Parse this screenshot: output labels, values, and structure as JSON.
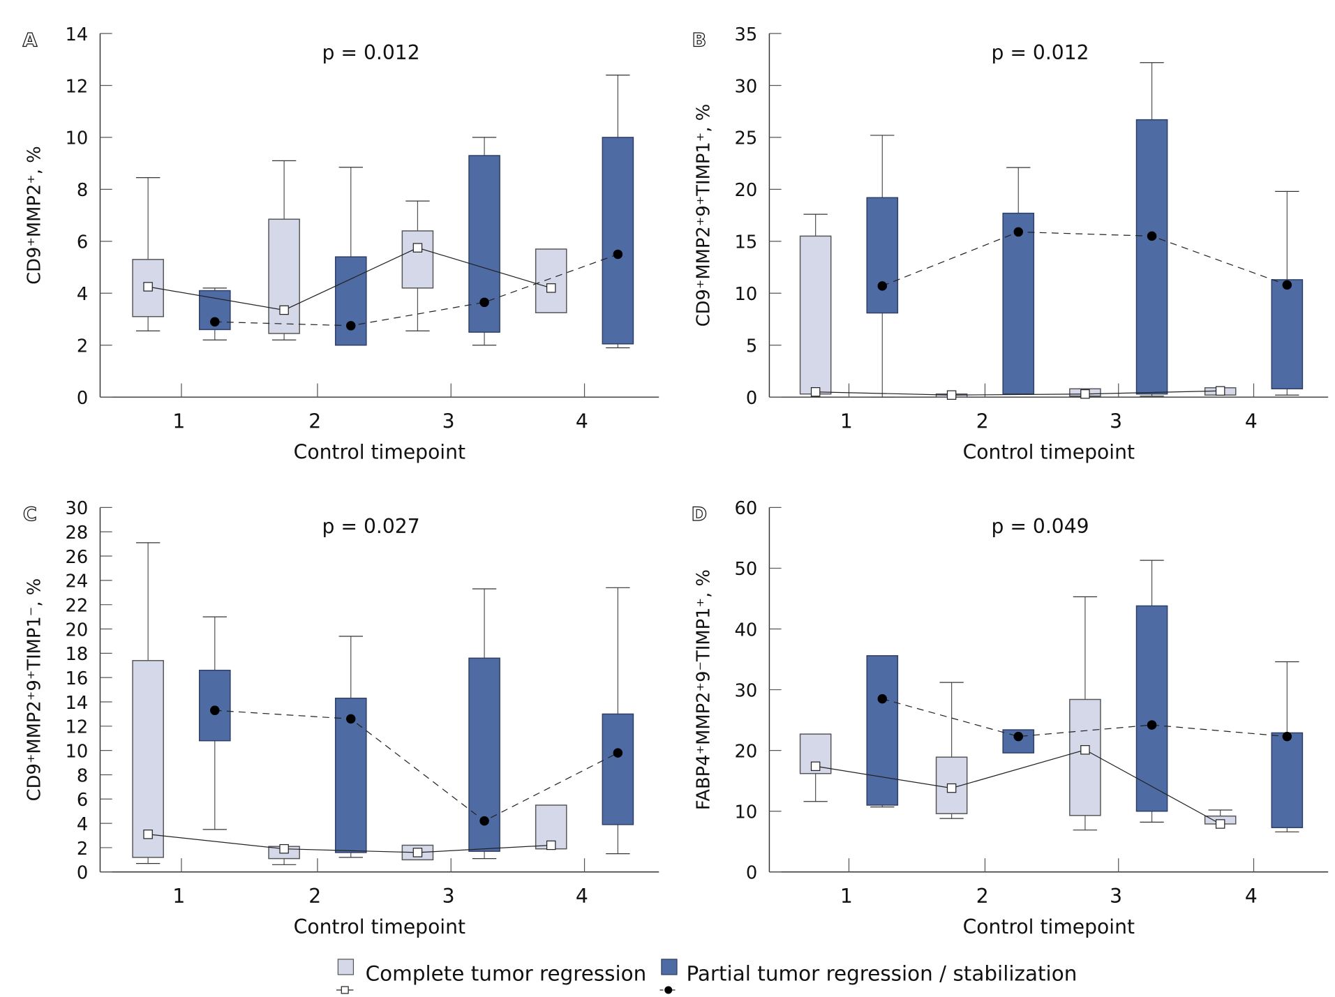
{
  "legend": {
    "complete": "Complete tumor regression",
    "partial": "Partial tumor regression / stabilization"
  },
  "colors": {
    "complete_fill": "#d4d8e8",
    "partial_fill": "#4e6ba3",
    "complete_stroke": "#555555",
    "partial_stroke": "#2e3e66"
  },
  "chart_data": [
    {
      "type": "box",
      "panel": "A",
      "p_text": "p = 0.012",
      "ylabel": "CD9⁺MMP2⁺, %",
      "xlabel": "Control timepoint",
      "ylim": [
        0,
        14
      ],
      "yticks": [
        0,
        2,
        4,
        6,
        8,
        10,
        12,
        14
      ],
      "categories": [
        "1",
        "2",
        "3",
        "4"
      ],
      "series": [
        {
          "name": "Complete tumor regression",
          "line": "solid",
          "marker": "open-square",
          "boxes": [
            {
              "whisker_high": 8.45,
              "q3": 5.3,
              "q1": 3.1,
              "whisker_low": 2.55,
              "center": 4.25
            },
            {
              "whisker_high": 9.1,
              "q3": 6.85,
              "q1": 2.45,
              "whisker_low": 2.2,
              "center": 3.35
            },
            {
              "whisker_high": 7.55,
              "q3": 6.4,
              "q1": 4.2,
              "whisker_low": 2.55,
              "center": 5.75
            },
            {
              "whisker_high": 5.7,
              "q3": 5.7,
              "q1": 3.25,
              "whisker_low": 3.25,
              "center": 4.2
            }
          ]
        },
        {
          "name": "Partial tumor regression / stabilization",
          "line": "dashed",
          "marker": "filled-circle",
          "boxes": [
            {
              "whisker_high": 4.2,
              "q3": 4.1,
              "q1": 2.6,
              "whisker_low": 2.2,
              "center": 2.9
            },
            {
              "whisker_high": 8.85,
              "q3": 5.4,
              "q1": 2.0,
              "whisker_low": 2.0,
              "center": 2.75
            },
            {
              "whisker_high": 10.0,
              "q3": 9.3,
              "q1": 2.5,
              "whisker_low": 2.0,
              "center": 3.65
            },
            {
              "whisker_high": 12.4,
              "q3": 10.0,
              "q1": 2.05,
              "whisker_low": 1.9,
              "center": 5.5
            }
          ]
        }
      ]
    },
    {
      "type": "box",
      "panel": "B",
      "p_text": "p = 0.012",
      "ylabel": "CD9⁺MMP2⁺9⁺TIMP1⁺, %",
      "xlabel": "Control timepoint",
      "ylim": [
        0,
        35
      ],
      "yticks": [
        0,
        5,
        10,
        15,
        20,
        25,
        30,
        35
      ],
      "categories": [
        "1",
        "2",
        "3",
        "4"
      ],
      "series": [
        {
          "name": "Complete tumor regression",
          "line": "solid",
          "marker": "open-square",
          "boxes": [
            {
              "whisker_high": 17.6,
              "q3": 15.5,
              "q1": 0.3,
              "whisker_low": 0.3,
              "center": 0.5
            },
            {
              "whisker_high": 0.3,
              "q3": 0.3,
              "q1": 0.0,
              "whisker_low": 0.0,
              "center": 0.2
            },
            {
              "whisker_high": 0.8,
              "q3": 0.8,
              "q1": 0.1,
              "whisker_low": 0.1,
              "center": 0.3
            },
            {
              "whisker_high": 0.9,
              "q3": 0.9,
              "q1": 0.2,
              "whisker_low": 0.2,
              "center": 0.6
            }
          ]
        },
        {
          "name": "Partial tumor regression / stabilization",
          "line": "dashed",
          "marker": "filled-circle",
          "boxes": [
            {
              "whisker_high": 25.2,
              "q3": 19.2,
              "q1": 8.1,
              "whisker_low": 0.0,
              "center": 10.7
            },
            {
              "whisker_high": 22.1,
              "q3": 17.7,
              "q1": 0.3,
              "whisker_low": 0.3,
              "center": 15.9
            },
            {
              "whisker_high": 32.2,
              "q3": 26.7,
              "q1": 0.3,
              "whisker_low": 0.1,
              "center": 15.5
            },
            {
              "whisker_high": 19.8,
              "q3": 11.3,
              "q1": 0.8,
              "whisker_low": 0.2,
              "center": 10.8
            }
          ]
        }
      ]
    },
    {
      "type": "box",
      "panel": "C",
      "p_text": "p = 0.027",
      "ylabel": "CD9⁺MMP2⁺9⁺TIMP1⁻, %",
      "xlabel": "Control timepoint",
      "ylim": [
        0,
        30
      ],
      "yticks": [
        0,
        2,
        4,
        6,
        8,
        10,
        12,
        14,
        16,
        18,
        20,
        22,
        24,
        26,
        28,
        30
      ],
      "categories": [
        "1",
        "2",
        "3",
        "4"
      ],
      "series": [
        {
          "name": "Complete tumor regression",
          "line": "solid",
          "marker": "open-square",
          "boxes": [
            {
              "whisker_high": 27.1,
              "q3": 17.4,
              "q1": 1.2,
              "whisker_low": 0.7,
              "center": 3.1
            },
            {
              "whisker_high": 2.1,
              "q3": 2.1,
              "q1": 1.1,
              "whisker_low": 0.6,
              "center": 1.9
            },
            {
              "whisker_high": 2.2,
              "q3": 2.2,
              "q1": 1.0,
              "whisker_low": 1.0,
              "center": 1.6
            },
            {
              "whisker_high": 5.5,
              "q3": 5.5,
              "q1": 1.9,
              "whisker_low": 1.9,
              "center": 2.2
            }
          ]
        },
        {
          "name": "Partial tumor regression / stabilization",
          "line": "dashed",
          "marker": "filled-circle",
          "boxes": [
            {
              "whisker_high": 21.0,
              "q3": 16.6,
              "q1": 10.8,
              "whisker_low": 3.5,
              "center": 13.3
            },
            {
              "whisker_high": 19.4,
              "q3": 14.3,
              "q1": 1.6,
              "whisker_low": 1.2,
              "center": 12.6
            },
            {
              "whisker_high": 23.3,
              "q3": 17.6,
              "q1": 1.7,
              "whisker_low": 1.1,
              "center": 4.2
            },
            {
              "whisker_high": 23.4,
              "q3": 13.0,
              "q1": 3.9,
              "whisker_low": 1.5,
              "center": 9.8
            }
          ]
        }
      ]
    },
    {
      "type": "box",
      "panel": "D",
      "p_text": "p = 0.049",
      "ylabel": "FABP4⁺MMP2⁺9⁻TIMP1⁺, %",
      "xlabel": "Control timepoint",
      "ylim": [
        0,
        60
      ],
      "yticks": [
        0,
        10,
        20,
        30,
        40,
        50,
        60
      ],
      "categories": [
        "1",
        "2",
        "3",
        "4"
      ],
      "series": [
        {
          "name": "Complete tumor regression",
          "line": "solid",
          "marker": "open-square",
          "boxes": [
            {
              "whisker_high": 22.7,
              "q3": 22.7,
              "q1": 16.2,
              "whisker_low": 11.6,
              "center": 17.4
            },
            {
              "whisker_high": 31.2,
              "q3": 18.9,
              "q1": 9.6,
              "whisker_low": 8.8,
              "center": 13.8
            },
            {
              "whisker_high": 45.3,
              "q3": 28.4,
              "q1": 9.3,
              "whisker_low": 6.9,
              "center": 20.1
            },
            {
              "whisker_high": 10.2,
              "q3": 9.2,
              "q1": 7.9,
              "whisker_low": 7.9,
              "center": 7.9
            }
          ]
        },
        {
          "name": "Partial tumor regression / stabilization",
          "line": "dashed",
          "marker": "filled-circle",
          "boxes": [
            {
              "whisker_high": 35.6,
              "q3": 35.6,
              "q1": 11.0,
              "whisker_low": 10.7,
              "center": 28.5
            },
            {
              "whisker_high": 23.4,
              "q3": 23.4,
              "q1": 19.6,
              "whisker_low": 19.6,
              "center": 22.3
            },
            {
              "whisker_high": 51.3,
              "q3": 43.8,
              "q1": 10.0,
              "whisker_low": 8.2,
              "center": 24.2
            },
            {
              "whisker_high": 34.6,
              "q3": 22.9,
              "q1": 7.3,
              "whisker_low": 6.6,
              "center": 22.3
            }
          ]
        }
      ]
    }
  ]
}
